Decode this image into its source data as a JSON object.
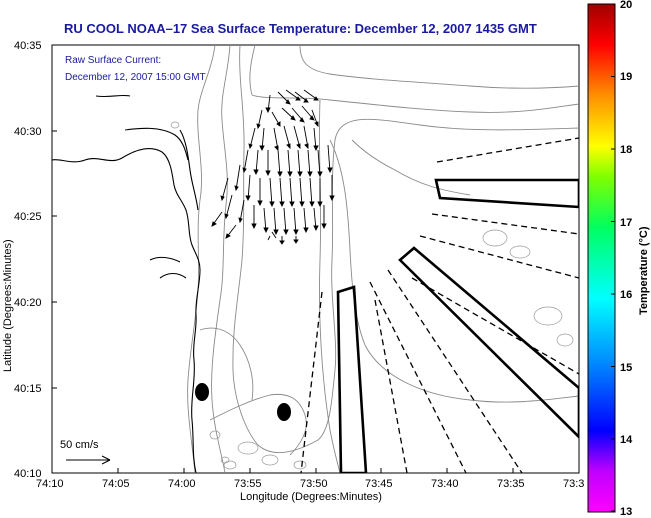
{
  "title": "RU COOL  NOAA–17  Sea Surface Temperature:  December 12, 2007 1435 GMT",
  "legend": {
    "line1": "Raw Surface Current:",
    "line2": "December 12, 2007 15:00 GMT",
    "scale_label": "50 cm/s"
  },
  "axes": {
    "xlabel": "Longitude (Degrees:Minutes)",
    "ylabel": "Latitude (Degrees:Minutes)",
    "xticks": [
      "74:10",
      "74:05",
      "74:00",
      "73:55",
      "73:50",
      "73:45",
      "73:40",
      "73:35",
      "73:3"
    ],
    "yticks": [
      "40:35",
      "40:30",
      "40:25",
      "40:20",
      "40:15",
      "40:10"
    ]
  },
  "colorbar": {
    "label": "Temperature (°C)",
    "ticks": [
      "20",
      "19",
      "18",
      "17",
      "16",
      "15",
      "14",
      "13"
    ],
    "range": [
      13,
      20
    ],
    "stops": [
      "#ff00ff",
      "#0000ff",
      "#00bfff",
      "#00ffbf",
      "#40ff00",
      "#ffff00",
      "#ff8000",
      "#ff0000",
      "#a00000"
    ]
  }
}
